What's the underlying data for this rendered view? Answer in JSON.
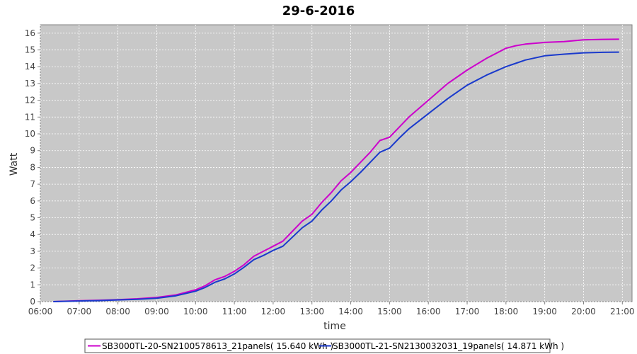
{
  "chart_data": {
    "type": "line",
    "title": "29-6-2016",
    "xlabel": "time",
    "ylabel": "Watt",
    "xlim": [
      "06:00",
      "21:15"
    ],
    "ylim": [
      0,
      16.5
    ],
    "x_ticks": [
      "06:00",
      "07:00",
      "08:00",
      "09:00",
      "10:00",
      "11:00",
      "12:00",
      "13:00",
      "14:00",
      "15:00",
      "16:00",
      "17:00",
      "18:00",
      "19:00",
      "20:00",
      "21:00"
    ],
    "y_ticks": [
      0,
      1,
      2,
      3,
      4,
      5,
      6,
      7,
      8,
      9,
      10,
      11,
      12,
      13,
      14,
      15,
      16
    ],
    "grid": true,
    "legend_position": "bottom-center",
    "background": "#c8c8c8",
    "series": [
      {
        "name": "SB3000TL-20-SN2100578613_21panels( 15.640 kWh )",
        "color": "#cc00cc",
        "x": [
          "06:20",
          "07:00",
          "07:30",
          "08:00",
          "08:30",
          "09:00",
          "09:30",
          "10:00",
          "10:15",
          "10:30",
          "10:45",
          "11:00",
          "11:15",
          "11:30",
          "11:45",
          "12:00",
          "12:15",
          "12:30",
          "12:45",
          "13:00",
          "13:15",
          "13:30",
          "13:45",
          "14:00",
          "14:15",
          "14:30",
          "14:45",
          "15:00",
          "15:15",
          "15:30",
          "16:00",
          "16:30",
          "17:00",
          "17:30",
          "18:00",
          "18:15",
          "18:30",
          "19:00",
          "19:30",
          "20:00",
          "20:30",
          "20:55"
        ],
        "y": [
          0.0,
          0.05,
          0.08,
          0.12,
          0.17,
          0.25,
          0.4,
          0.7,
          0.95,
          1.3,
          1.5,
          1.8,
          2.2,
          2.7,
          3.0,
          3.3,
          3.6,
          4.2,
          4.8,
          5.2,
          5.9,
          6.5,
          7.2,
          7.7,
          8.3,
          8.9,
          9.6,
          9.8,
          10.4,
          11.0,
          12.0,
          13.0,
          13.8,
          14.5,
          15.1,
          15.25,
          15.35,
          15.45,
          15.5,
          15.6,
          15.63,
          15.64
        ]
      },
      {
        "name": "SB3000TL-21-SN2130032031_19panels( 14.871 kWh )",
        "color": "#1a3acc",
        "x": [
          "06:20",
          "07:00",
          "07:30",
          "08:00",
          "08:30",
          "09:00",
          "09:30",
          "10:00",
          "10:15",
          "10:30",
          "10:45",
          "11:00",
          "11:15",
          "11:30",
          "11:45",
          "12:00",
          "12:15",
          "12:30",
          "12:45",
          "13:00",
          "13:15",
          "13:30",
          "13:45",
          "14:00",
          "14:15",
          "14:30",
          "14:45",
          "15:00",
          "15:15",
          "15:30",
          "16:00",
          "16:30",
          "17:00",
          "17:30",
          "18:00",
          "18:15",
          "18:30",
          "19:00",
          "19:30",
          "20:00",
          "20:30",
          "20:55"
        ],
        "y": [
          0.0,
          0.04,
          0.06,
          0.1,
          0.14,
          0.2,
          0.35,
          0.62,
          0.85,
          1.15,
          1.35,
          1.65,
          2.05,
          2.5,
          2.75,
          3.05,
          3.3,
          3.85,
          4.4,
          4.8,
          5.45,
          6.0,
          6.65,
          7.15,
          7.7,
          8.3,
          8.9,
          9.15,
          9.75,
          10.3,
          11.2,
          12.1,
          12.9,
          13.5,
          14.0,
          14.2,
          14.4,
          14.65,
          14.75,
          14.83,
          14.86,
          14.87
        ]
      }
    ]
  }
}
